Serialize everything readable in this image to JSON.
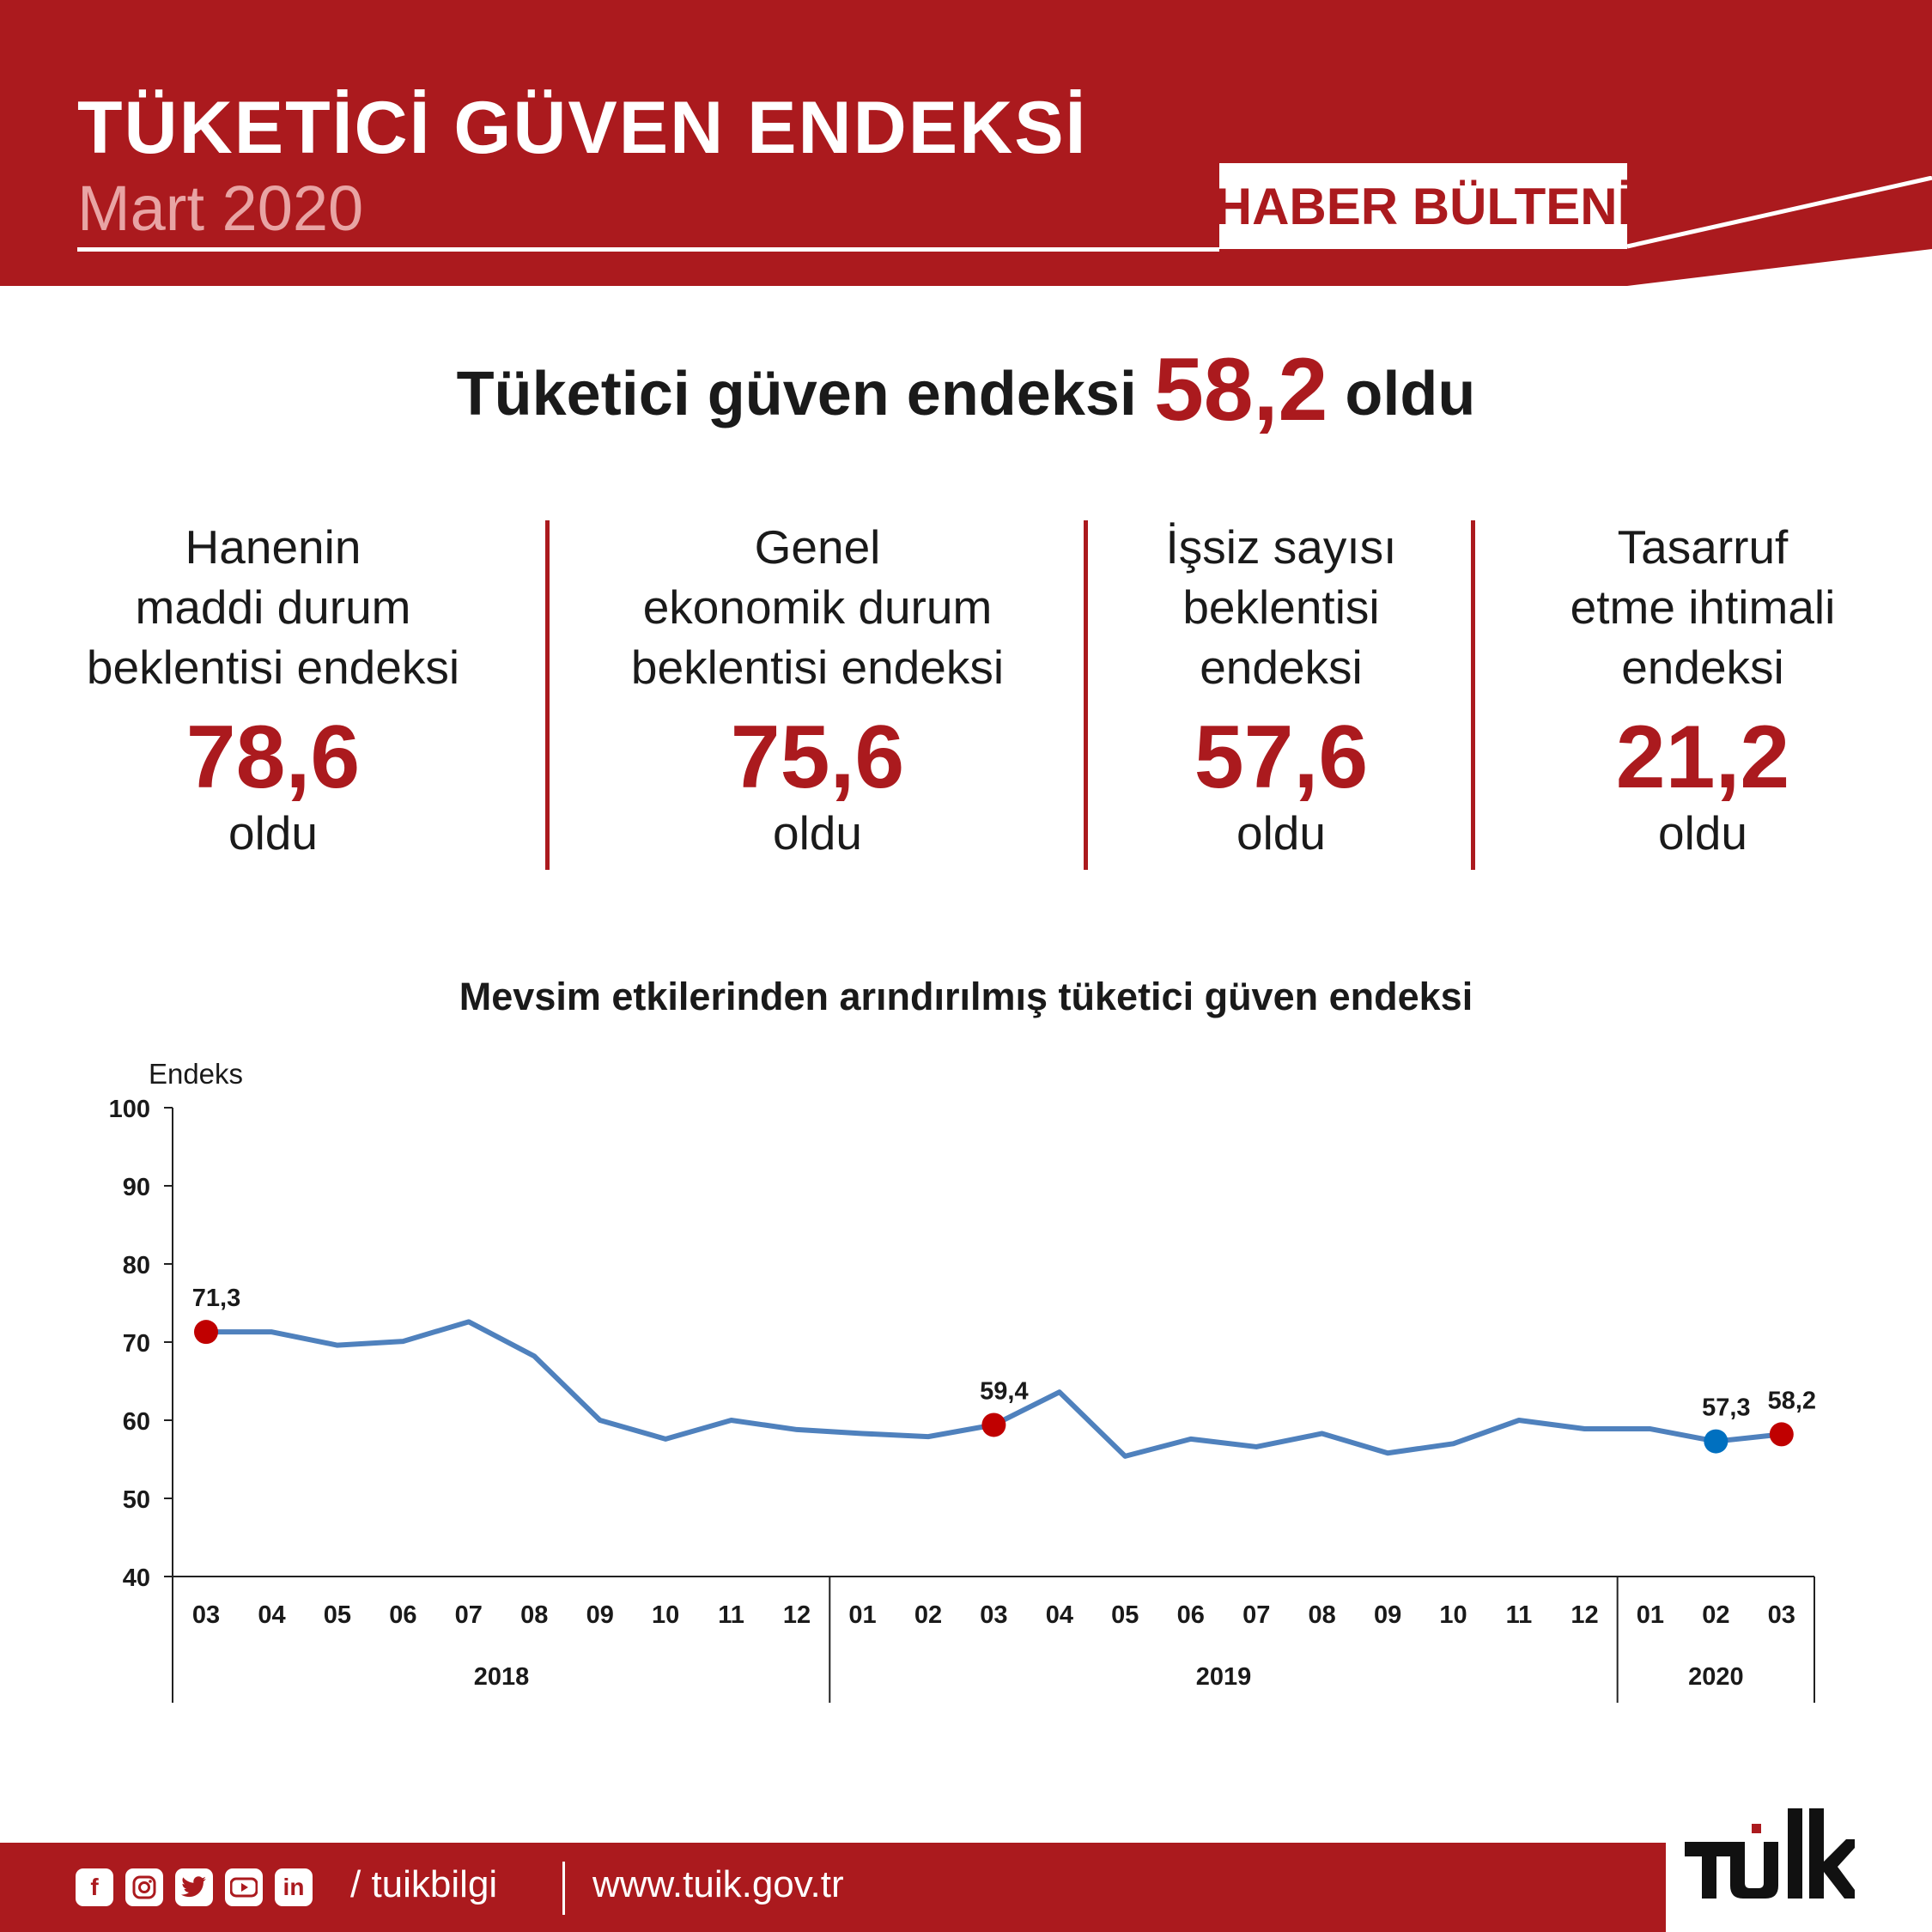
{
  "header": {
    "title": "TÜKETİCİ GÜVEN ENDEKSİ",
    "subtitle": "Mart 2020",
    "badge": "HABER BÜLTENİ"
  },
  "headline": {
    "prefix": "Tüketici güven endeksi",
    "value": "58,2",
    "suffix": "oldu"
  },
  "stats": [
    {
      "label_lines": [
        "Hanenin",
        "maddi durum",
        "beklentisi endeksi"
      ],
      "value": "78,6",
      "suffix": "oldu"
    },
    {
      "label_lines": [
        "Genel",
        "ekonomik durum",
        "beklentisi endeksi"
      ],
      "value": "75,6",
      "suffix": "oldu"
    },
    {
      "label_lines": [
        "İşsiz sayısı",
        "beklentisi",
        "endeksi"
      ],
      "value": "57,6",
      "suffix": "oldu"
    },
    {
      "label_lines": [
        "Tasarruf",
        "etme ihtimali",
        "endeksi"
      ],
      "value": "21,2",
      "suffix": "oldu"
    }
  ],
  "chart_data": {
    "type": "line",
    "title": "Mevsim etkilerinden arındırılmış tüketici güven endeksi",
    "ylabel": "Endeks",
    "ylim": [
      40,
      100
    ],
    "yticks": [
      40,
      50,
      60,
      70,
      80,
      90,
      100
    ],
    "categories": [
      "03",
      "04",
      "05",
      "06",
      "07",
      "08",
      "09",
      "10",
      "11",
      "12",
      "01",
      "02",
      "03",
      "04",
      "05",
      "06",
      "07",
      "08",
      "09",
      "10",
      "11",
      "12",
      "01",
      "02",
      "03"
    ],
    "year_groups": [
      {
        "label": "2018",
        "count": 10
      },
      {
        "label": "2019",
        "count": 12
      },
      {
        "label": "2020",
        "count": 3
      }
    ],
    "series": [
      {
        "values": [
          71.3,
          71.3,
          69.6,
          70.1,
          72.6,
          68.2,
          60.0,
          57.6,
          60.0,
          58.8,
          58.3,
          57.9,
          59.4,
          63.6,
          55.4,
          57.6,
          56.6,
          58.3,
          55.8,
          57.0,
          60.0,
          58.9,
          58.9,
          57.3,
          58.2
        ],
        "color": "#4f81bd"
      }
    ],
    "highlights": [
      {
        "index": 0,
        "label": "71,3",
        "color": "#c00000"
      },
      {
        "index": 12,
        "label": "59,4",
        "color": "#c00000"
      },
      {
        "index": 23,
        "label": "57,3",
        "color": "#0070c0"
      },
      {
        "index": 24,
        "label": "58,2",
        "color": "#c00000"
      }
    ],
    "grid": false,
    "legend": "none"
  },
  "footer": {
    "social_icons": [
      "facebook-icon",
      "instagram-icon",
      "twitter-icon",
      "youtube-icon",
      "linkedin-icon"
    ],
    "handle": "/ tuikbilgi",
    "website": "www.tuik.gov.tr"
  },
  "colors": {
    "brand_red": "#ab1a1e",
    "line": "#4f81bd",
    "highlight_red": "#c00000",
    "highlight_blue": "#0070c0"
  }
}
